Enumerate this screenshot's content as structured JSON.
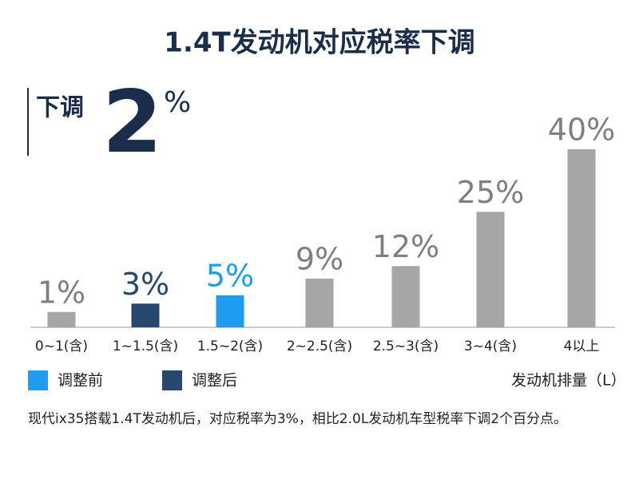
{
  "chart_data": {
    "type": "bar",
    "title": "1.4T发动机对应税率下调",
    "callout": {
      "label": "下调",
      "value": 2,
      "unit": "%"
    },
    "categories": [
      "0~1(含)",
      "1~1.5(含)",
      "1.5~2(含)",
      "2~2.5(含)",
      "2.5~3(含)",
      "3~4(含)",
      "4以上"
    ],
    "values": [
      1,
      3,
      5,
      9,
      12,
      25,
      40
    ],
    "value_labels": [
      "1%",
      "3%",
      "5%",
      "9%",
      "12%",
      "25%",
      "40%"
    ],
    "colors": [
      "#a6a6a6",
      "#26486e",
      "#1e9cf0",
      "#a6a6a6",
      "#a6a6a6",
      "#a6a6a6",
      "#a6a6a6"
    ],
    "label_colors": [
      "#7f7f7f",
      "#26486e",
      "#1e9cf0",
      "#7f7f7f",
      "#7f7f7f",
      "#7f7f7f",
      "#7f7f7f"
    ],
    "legend": [
      {
        "name": "调整前",
        "color": "#1e9cf0"
      },
      {
        "name": "调整后",
        "color": "#26486e"
      }
    ],
    "x_label": "发动机排量（L）",
    "note": "现代ix35搭载1.4T发动机后，对应税率为3%，相比2.0L发动机车型税率下调2个百分点。"
  }
}
